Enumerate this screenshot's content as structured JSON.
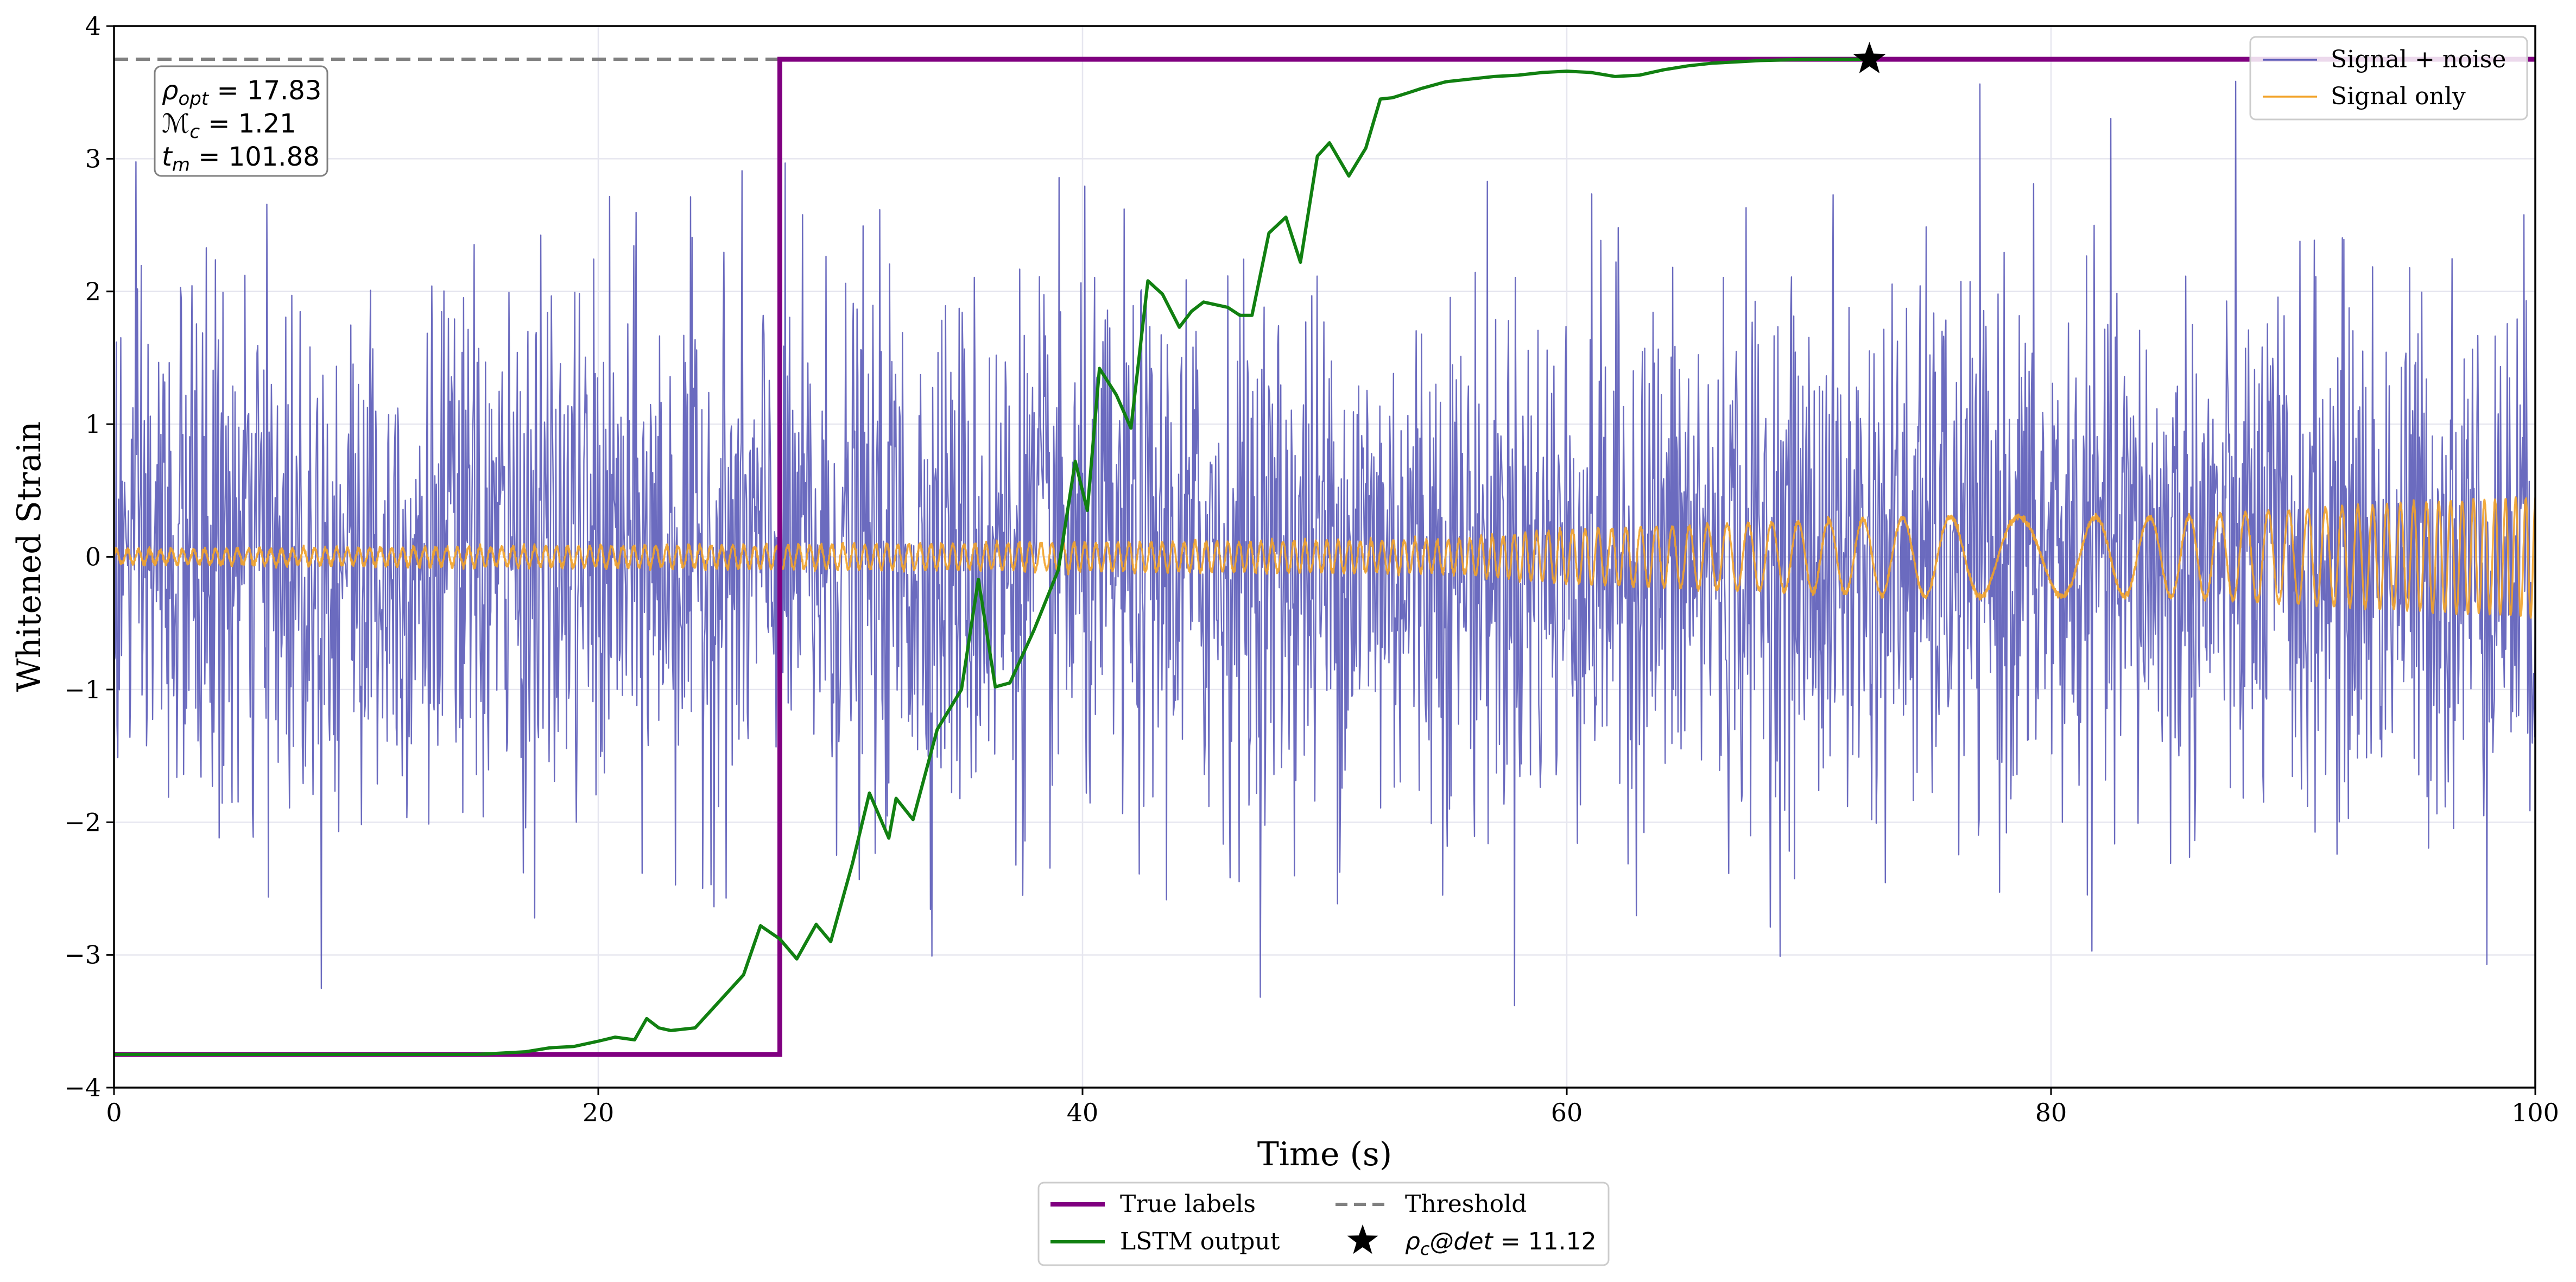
{
  "chart_data": {
    "type": "line",
    "xlabel": "Time (s)",
    "ylabel": "Whitened Strain",
    "xlim": [
      0,
      100
    ],
    "ylim": [
      -4,
      4
    ],
    "xticks": [
      0,
      20,
      40,
      60,
      80,
      100
    ],
    "yticks": [
      -4,
      -3,
      -2,
      -1,
      0,
      1,
      2,
      3,
      4
    ],
    "xtick_labels": [
      "0",
      "20",
      "40",
      "60",
      "80",
      "100"
    ],
    "ytick_labels": [
      "−4",
      "−3",
      "−2",
      "−1",
      "0",
      "1",
      "2",
      "3",
      "4"
    ],
    "grid": true,
    "colors": {
      "noisy": "#5b5bb8",
      "signal": "#f2a32a",
      "true_labels": "#800080",
      "lstm": "#118011",
      "threshold": "#808080",
      "marker": "#000000"
    },
    "series": [
      {
        "name": "Signal + noise",
        "kind": "noisy_strain",
        "noise_std": 1.0,
        "approx_range": [
          -3.8,
          3.8
        ]
      },
      {
        "name": "Signal only",
        "kind": "chirp",
        "amplitude": [
          [
            0,
            0.05
          ],
          [
            55,
            0.12
          ],
          [
            60,
            0.2
          ],
          [
            75,
            0.3
          ],
          [
            85,
            0.3
          ],
          [
            100,
            0.45
          ]
        ]
      },
      {
        "name": "True labels",
        "kind": "step",
        "x": [
          0,
          27.5,
          27.5,
          100
        ],
        "y": [
          -3.75,
          -3.75,
          3.75,
          3.75
        ]
      },
      {
        "name": "LSTM output",
        "kind": "line",
        "x": [
          0,
          15,
          17,
          18,
          19,
          20,
          20.7,
          21.5,
          22,
          22.5,
          23,
          24,
          25,
          26,
          26.7,
          27.5,
          28.2,
          29,
          29.6,
          30.5,
          31.2,
          32,
          32.3,
          33,
          34,
          35,
          35.7,
          36.4,
          37,
          38,
          39,
          39.7,
          40.2,
          40.7,
          41.4,
          42,
          42.7,
          43.3,
          44,
          44.5,
          45,
          46,
          46.5,
          47,
          47.7,
          48.4,
          49,
          49.7,
          50.2,
          51,
          51.7,
          52.3,
          52.8,
          53.5,
          54,
          55,
          56,
          57,
          58,
          59,
          60,
          61,
          62,
          63,
          64,
          65,
          66,
          67,
          68,
          70,
          72.5
        ],
        "y": [
          -3.75,
          -3.75,
          -3.73,
          -3.7,
          -3.69,
          -3.65,
          -3.62,
          -3.64,
          -3.48,
          -3.55,
          -3.57,
          -3.55,
          -3.35,
          -3.15,
          -2.78,
          -2.88,
          -3.03,
          -2.77,
          -2.9,
          -2.31,
          -1.78,
          -2.12,
          -1.82,
          -1.98,
          -1.3,
          -1.0,
          -0.17,
          -0.98,
          -0.95,
          -0.55,
          -0.1,
          0.72,
          0.35,
          1.42,
          1.22,
          0.97,
          2.08,
          1.98,
          1.73,
          1.85,
          1.92,
          1.88,
          1.82,
          1.82,
          2.44,
          2.56,
          2.22,
          3.02,
          3.12,
          2.87,
          3.08,
          3.45,
          3.46,
          3.5,
          3.53,
          3.58,
          3.6,
          3.62,
          3.63,
          3.65,
          3.66,
          3.65,
          3.62,
          3.63,
          3.67,
          3.7,
          3.72,
          3.73,
          3.74,
          3.75,
          3.75
        ]
      },
      {
        "name": "Threshold",
        "kind": "hline",
        "y": 3.75
      }
    ],
    "detection_marker": {
      "x": 72.5,
      "y": 3.75,
      "label": "ρ_c@det = 11.12"
    },
    "annotations": {
      "rho_opt": "ρ_opt = 17.83",
      "chirp_mass": "ℳ_c = 1.21",
      "t_m": "t_m = 101.88"
    },
    "legend_upper": {
      "placement": "top-right",
      "items": [
        "Signal + noise",
        "Signal only"
      ]
    },
    "legend_lower": {
      "placement": "bottom-center-outside",
      "items": [
        "True labels",
        "Threshold",
        "LSTM output",
        "ρ_c@det = 11.12"
      ]
    }
  }
}
